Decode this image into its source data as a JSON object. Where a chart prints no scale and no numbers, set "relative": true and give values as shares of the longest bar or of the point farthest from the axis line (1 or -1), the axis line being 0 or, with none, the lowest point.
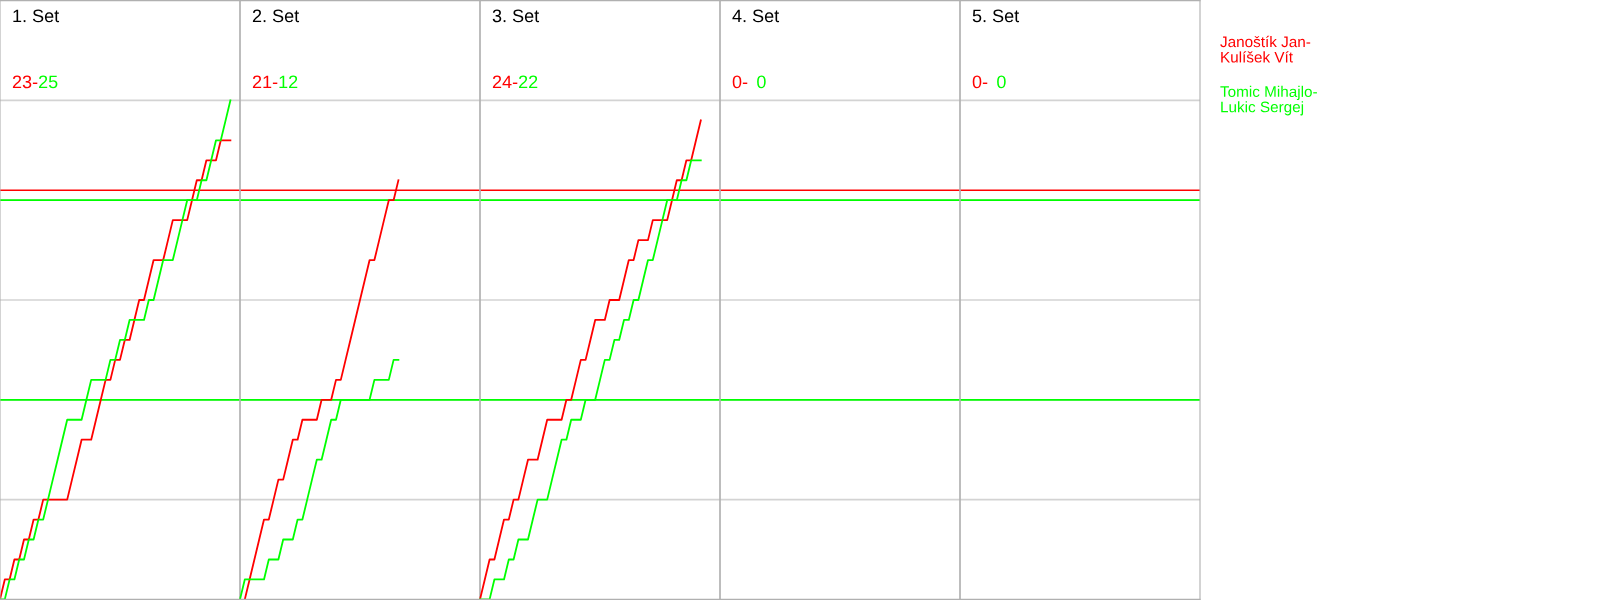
{
  "chart_data": {
    "type": "line",
    "relative": true,
    "annotations": [
      "1. Set",
      "23-",
      "25",
      "2. Set",
      "21-",
      "12",
      "3. Set",
      "24-",
      "22",
      "4. Set",
      "0-",
      "0",
      "5. Set",
      "0-",
      "0"
    ],
    "categories": [
      null,
      null,
      null,
      null,
      null,
      null,
      null,
      null,
      null,
      null,
      null,
      null,
      null,
      null,
      null,
      null,
      null,
      null,
      null,
      null,
      null,
      null,
      null,
      null,
      null,
      null,
      null,
      null,
      null,
      null,
      null,
      null,
      null,
      null,
      null,
      null,
      null,
      null,
      null,
      null,
      null,
      null,
      null,
      null,
      null,
      null,
      null,
      null,
      null,
      null,
      null,
      null,
      null,
      null,
      null,
      null,
      null,
      null,
      null,
      null,
      null,
      null,
      null,
      null,
      null,
      null,
      null,
      null,
      null,
      null,
      null,
      null,
      null,
      null,
      null,
      null,
      null,
      null,
      null,
      null,
      null,
      null,
      null,
      null,
      null,
      null,
      null,
      null,
      null,
      null,
      null,
      null,
      null,
      null,
      null,
      null,
      null,
      null,
      null,
      null,
      null,
      null,
      null,
      null,
      null,
      null,
      null,
      null,
      null,
      null,
      null,
      null,
      null,
      null,
      null,
      null,
      null,
      null,
      null,
      null,
      null,
      null,
      null,
      null,
      null,
      null,
      null,
      null,
      null,
      null,
      null,
      null,
      null,
      null,
      null,
      null,
      null,
      null,
      null,
      null,
      null,
      null,
      null,
      null,
      null,
      null,
      null,
      null,
      null,
      null,
      null,
      null,
      null,
      null,
      null,
      null,
      null,
      null,
      null,
      null,
      null,
      null,
      null,
      null,
      null,
      null,
      null,
      null,
      null,
      null,
      null,
      null,
      null,
      null,
      null,
      null,
      null,
      null,
      null,
      null,
      null,
      null,
      null,
      null,
      null,
      null,
      null,
      null,
      null,
      null,
      null,
      null,
      null,
      null,
      null,
      null,
      null,
      null,
      null,
      null,
      null,
      null,
      null,
      null,
      null,
      null,
      null,
      null,
      null,
      null,
      null,
      null,
      null,
      null,
      null,
      null,
      null,
      null,
      null,
      null,
      null,
      null,
      null,
      null,
      null,
      null,
      null,
      null,
      null,
      null,
      null,
      null,
      null,
      null,
      null,
      null,
      null,
      null,
      null,
      null,
      null,
      null,
      null,
      null,
      null,
      null,
      null,
      null,
      null,
      null
    ],
    "ref_lines": [
      {
        "axis": "y",
        "value": 0.2,
        "color": "#d3d3d3"
      },
      {
        "axis": "y",
        "value": 0.4,
        "color": "#d3d3d3"
      },
      {
        "axis": "y",
        "value": 0.6,
        "color": "#d3d3d3"
      },
      {
        "axis": "y",
        "value": 0.8,
        "color": "#d3d3d3"
      },
      {
        "axis": "y",
        "value": 1,
        "color": "#d3d3d3"
      },
      {
        "axis": "y",
        "value": 0.82,
        "color": "#ff0000"
      },
      {
        "axis": "y",
        "value": 0.8,
        "color": "#00ff00"
      },
      {
        "axis": "y",
        "value": 0.4,
        "color": "#00ff00"
      }
    ],
    "series": [
      {
        "name": "Janoštík Jan-\nKulíšek Vít",
        "color": "#ff0000",
        "values": [
          0,
          0.04,
          0.04,
          0.08,
          0.08,
          0.12,
          0.12,
          0.16,
          0.16,
          0.2,
          0.2,
          0.2,
          0.2,
          0.2,
          0.2,
          0.24,
          0.28,
          0.32,
          0.32,
          0.32,
          0.36,
          0.4,
          0.44,
          0.44,
          0.48,
          0.48,
          0.52,
          0.52,
          0.56,
          0.6,
          0.6,
          0.64,
          0.68,
          0.68,
          0.68,
          0.72,
          0.76,
          0.76,
          0.76,
          0.76,
          0.8,
          0.84,
          0.84,
          0.88,
          0.88,
          0.88,
          0.92,
          0.92,
          0.92,
          null,
          null,
          null,
          null,
          null,
          null,
          null,
          null,
          null,
          null,
          null,
          null,
          null,
          null,
          null,
          null,
          null,
          null,
          null,
          null,
          null,
          null,
          null,
          null,
          null,
          null,
          null,
          null,
          null,
          null,
          null,
          null,
          null,
          null,
          null,
          null,
          null,
          null,
          null,
          null,
          null,
          null,
          null,
          null,
          null,
          null,
          null,
          null,
          null,
          null,
          null,
          null,
          null,
          null,
          null,
          null,
          null,
          null,
          null,
          null,
          null,
          null,
          null,
          null,
          null,
          null,
          null,
          null,
          null,
          null,
          null,
          null,
          null,
          null,
          null,
          null,
          null,
          null,
          null,
          null,
          null,
          null,
          null,
          null,
          null,
          null,
          null,
          null,
          null,
          null,
          null,
          null,
          null,
          null,
          null,
          null,
          null,
          null,
          null,
          null,
          null,
          null,
          null,
          null,
          null,
          null,
          null,
          null,
          null,
          null,
          null,
          null,
          null,
          null,
          null,
          null,
          null,
          null,
          null,
          null,
          null,
          null,
          null,
          null,
          null,
          null,
          null,
          null,
          null,
          null,
          null,
          null,
          null,
          null,
          null,
          null,
          null,
          null,
          null,
          null,
          null,
          null,
          null,
          null,
          null,
          null,
          null,
          null,
          null,
          null,
          null,
          null,
          null,
          null,
          null,
          null,
          null,
          null,
          null,
          null,
          null,
          null,
          null,
          null,
          null,
          null,
          null,
          null,
          null,
          null,
          null,
          null,
          null,
          null,
          null,
          null,
          null,
          null,
          null,
          null,
          null,
          null,
          null,
          null,
          null,
          null,
          null,
          null,
          null,
          null,
          null,
          null,
          null,
          null,
          null,
          null,
          null,
          null,
          null,
          null,
          null
        ]
      },
      {
        "name": "Tomic Mihajlo-\nLukic Sergej",
        "color": "#00ff00",
        "values": [
          0,
          0,
          0.04,
          0.04,
          0.08,
          0.08,
          0.12,
          0.12,
          0.16,
          0.16,
          0.2,
          0.24,
          0.28,
          0.32,
          0.36,
          0.36,
          0.36,
          0.36,
          0.4,
          0.44,
          0.44,
          0.44,
          0.44,
          0.48,
          0.48,
          0.52,
          0.52,
          0.56,
          0.56,
          0.56,
          0.56,
          0.6,
          0.6,
          0.64,
          0.68,
          0.68,
          0.68,
          0.72,
          0.76,
          0.8,
          0.8,
          0.8,
          0.84,
          0.84,
          0.88,
          0.92,
          0.92,
          0.96,
          1,
          null,
          null,
          null,
          null,
          null,
          null,
          null,
          null,
          null,
          null,
          null,
          null,
          null,
          null,
          null,
          null,
          null,
          null,
          null,
          null,
          null,
          null,
          null,
          null,
          null,
          null,
          null,
          null,
          null,
          null,
          null,
          null,
          null,
          null,
          null,
          null,
          null,
          null,
          null,
          null,
          null,
          null,
          null,
          null,
          null,
          null,
          null,
          null,
          null,
          null,
          null,
          null,
          null,
          null,
          null,
          null,
          null,
          null,
          null,
          null,
          null,
          null,
          null,
          null,
          null,
          null,
          null,
          null,
          null,
          null,
          null,
          null,
          null,
          null,
          null,
          null,
          null,
          null,
          null,
          null,
          null,
          null,
          null,
          null,
          null,
          null,
          null,
          null,
          null,
          null,
          null,
          null,
          null,
          null,
          null,
          null,
          null,
          null,
          null,
          null,
          null,
          null,
          null,
          null,
          null,
          null,
          null,
          null,
          null,
          null,
          null,
          null,
          null,
          null,
          null,
          null,
          null,
          null,
          null,
          null,
          null,
          null,
          null,
          null,
          null,
          null,
          null,
          null,
          null,
          null,
          null,
          null,
          null,
          null,
          null,
          null,
          null,
          null,
          null,
          null,
          null,
          null,
          null,
          null,
          null,
          null,
          null,
          null,
          null,
          null,
          null,
          null,
          null,
          null,
          null,
          null,
          null,
          null,
          null,
          null,
          null,
          null,
          null,
          null,
          null,
          null,
          null,
          null,
          null,
          null,
          null,
          null,
          null,
          null,
          null,
          null,
          null,
          null,
          null,
          null,
          null,
          null,
          null,
          null,
          null,
          null,
          null,
          null,
          null,
          null,
          null,
          null,
          null,
          null,
          null,
          null,
          null,
          null,
          null,
          null,
          null
        ]
      },
      {
        "color": "#ff0000",
        "values": [
          null,
          null,
          null,
          null,
          null,
          null,
          null,
          null,
          null,
          null,
          null,
          null,
          null,
          null,
          null,
          null,
          null,
          null,
          null,
          null,
          null,
          null,
          null,
          null,
          null,
          null,
          null,
          null,
          null,
          null,
          null,
          null,
          null,
          null,
          null,
          null,
          null,
          null,
          null,
          null,
          null,
          null,
          null,
          null,
          null,
          null,
          null,
          null,
          null,
          null,
          null,
          0,
          0.04,
          0.08,
          0.12,
          0.16,
          0.16,
          0.2,
          0.24,
          0.24,
          0.28,
          0.32,
          0.32,
          0.36,
          0.36,
          0.36,
          0.36,
          0.4,
          0.4,
          0.4,
          0.44,
          0.44,
          0.48,
          0.52,
          0.56,
          0.6,
          0.64,
          0.68,
          0.68,
          0.72,
          0.76,
          0.8,
          0.8,
          0.84,
          null,
          null,
          null,
          null,
          null,
          null,
          null,
          null,
          null,
          null,
          null,
          null,
          null,
          null,
          null,
          null,
          null,
          null,
          null,
          null,
          null,
          null,
          null,
          null,
          null,
          null,
          null,
          null,
          null,
          null,
          null,
          null,
          null,
          null,
          null,
          null,
          null,
          null,
          null,
          null,
          null,
          null,
          null,
          null,
          null,
          null,
          null,
          null,
          null,
          null,
          null,
          null,
          null,
          null,
          null,
          null,
          null,
          null,
          null,
          null,
          null,
          null,
          null,
          null,
          null,
          null,
          null,
          null,
          null,
          null,
          null,
          null,
          null,
          null,
          null,
          null,
          null,
          null,
          null,
          null,
          null,
          null,
          null,
          null,
          null,
          null,
          null,
          null,
          null,
          null,
          null,
          null,
          null,
          null,
          null,
          null,
          null,
          null,
          null,
          null,
          null,
          null,
          null,
          null,
          null,
          null,
          null,
          null,
          null,
          null,
          null,
          null,
          null,
          null,
          null,
          null,
          null,
          null,
          null,
          null,
          null,
          null,
          null,
          null,
          null,
          null,
          null,
          null,
          null,
          null,
          null,
          null,
          null,
          null,
          null,
          null,
          null,
          null,
          null,
          null,
          null,
          null,
          null,
          null,
          null,
          null,
          null,
          null,
          null,
          null,
          null,
          null,
          null,
          null,
          null,
          null,
          null,
          null,
          null,
          null,
          null,
          null,
          null,
          null,
          null,
          null
        ]
      },
      {
        "color": "#00ff00",
        "values": [
          null,
          null,
          null,
          null,
          null,
          null,
          null,
          null,
          null,
          null,
          null,
          null,
          null,
          null,
          null,
          null,
          null,
          null,
          null,
          null,
          null,
          null,
          null,
          null,
          null,
          null,
          null,
          null,
          null,
          null,
          null,
          null,
          null,
          null,
          null,
          null,
          null,
          null,
          null,
          null,
          null,
          null,
          null,
          null,
          null,
          null,
          null,
          null,
          null,
          null,
          0,
          0.04,
          0.04,
          0.04,
          0.04,
          0.04,
          0.08,
          0.08,
          0.08,
          0.12,
          0.12,
          0.12,
          0.16,
          0.16,
          0.2,
          0.24,
          0.28,
          0.28,
          0.32,
          0.36,
          0.36,
          0.4,
          0.4,
          0.4,
          0.4,
          0.4,
          0.4,
          0.4,
          0.44,
          0.44,
          0.44,
          0.44,
          0.48,
          0.48,
          null,
          null,
          null,
          null,
          null,
          null,
          null,
          null,
          null,
          null,
          null,
          null,
          null,
          null,
          null,
          null,
          null,
          null,
          null,
          null,
          null,
          null,
          null,
          null,
          null,
          null,
          null,
          null,
          null,
          null,
          null,
          null,
          null,
          null,
          null,
          null,
          null,
          null,
          null,
          null,
          null,
          null,
          null,
          null,
          null,
          null,
          null,
          null,
          null,
          null,
          null,
          null,
          null,
          null,
          null,
          null,
          null,
          null,
          null,
          null,
          null,
          null,
          null,
          null,
          null,
          null,
          null,
          null,
          null,
          null,
          null,
          null,
          null,
          null,
          null,
          null,
          null,
          null,
          null,
          null,
          null,
          null,
          null,
          null,
          null,
          null,
          null,
          null,
          null,
          null,
          null,
          null,
          null,
          null,
          null,
          null,
          null,
          null,
          null,
          null,
          null,
          null,
          null,
          null,
          null,
          null,
          null,
          null,
          null,
          null,
          null,
          null,
          null,
          null,
          null,
          null,
          null,
          null,
          null,
          null,
          null,
          null,
          null,
          null,
          null,
          null,
          null,
          null,
          null,
          null,
          null,
          null,
          null,
          null,
          null,
          null,
          null,
          null,
          null,
          null,
          null,
          null,
          null,
          null,
          null,
          null,
          null,
          null,
          null,
          null,
          null,
          null,
          null,
          null,
          null,
          null,
          null,
          null,
          null,
          null,
          null,
          null,
          null,
          null,
          null,
          null
        ]
      },
      {
        "color": "#ff0000",
        "values": [
          null,
          null,
          null,
          null,
          null,
          null,
          null,
          null,
          null,
          null,
          null,
          null,
          null,
          null,
          null,
          null,
          null,
          null,
          null,
          null,
          null,
          null,
          null,
          null,
          null,
          null,
          null,
          null,
          null,
          null,
          null,
          null,
          null,
          null,
          null,
          null,
          null,
          null,
          null,
          null,
          null,
          null,
          null,
          null,
          null,
          null,
          null,
          null,
          null,
          null,
          null,
          null,
          null,
          null,
          null,
          null,
          null,
          null,
          null,
          null,
          null,
          null,
          null,
          null,
          null,
          null,
          null,
          null,
          null,
          null,
          null,
          null,
          null,
          null,
          null,
          null,
          null,
          null,
          null,
          null,
          null,
          null,
          null,
          null,
          null,
          null,
          null,
          null,
          null,
          null,
          null,
          null,
          null,
          null,
          null,
          null,
          null,
          null,
          null,
          null,
          0,
          0.04,
          0.08,
          0.08,
          0.12,
          0.16,
          0.16,
          0.2,
          0.2,
          0.24,
          0.28,
          0.28,
          0.28,
          0.32,
          0.36,
          0.36,
          0.36,
          0.36,
          0.4,
          0.4,
          0.44,
          0.48,
          0.48,
          0.52,
          0.56,
          0.56,
          0.56,
          0.6,
          0.6,
          0.6,
          0.64,
          0.68,
          0.68,
          0.72,
          0.72,
          0.72,
          0.76,
          0.76,
          0.76,
          0.76,
          0.8,
          0.84,
          0.84,
          0.88,
          0.88,
          0.92,
          0.96,
          null,
          null,
          null,
          null,
          null,
          null,
          null,
          null,
          null,
          null,
          null,
          null,
          null,
          null,
          null,
          null,
          null,
          null,
          null,
          null,
          null,
          null,
          null,
          null,
          null,
          null,
          null,
          null,
          null,
          null,
          null,
          null,
          null,
          null,
          null,
          null,
          null,
          null,
          null,
          null,
          null,
          null,
          null,
          null,
          null,
          null,
          null,
          null,
          null,
          null,
          null,
          null,
          null,
          null,
          null,
          null,
          null,
          null,
          null,
          null,
          null,
          null,
          null,
          null,
          null,
          null,
          null,
          null,
          null,
          null,
          null,
          null,
          null,
          null,
          null,
          null,
          null,
          null,
          null,
          null,
          null,
          null,
          null,
          null,
          null,
          null,
          null,
          null,
          null,
          null,
          null,
          null,
          null,
          null,
          null,
          null,
          null,
          null,
          null,
          null,
          null,
          null,
          null
        ]
      },
      {
        "color": "#00ff00",
        "values": [
          null,
          null,
          null,
          null,
          null,
          null,
          null,
          null,
          null,
          null,
          null,
          null,
          null,
          null,
          null,
          null,
          null,
          null,
          null,
          null,
          null,
          null,
          null,
          null,
          null,
          null,
          null,
          null,
          null,
          null,
          null,
          null,
          null,
          null,
          null,
          null,
          null,
          null,
          null,
          null,
          null,
          null,
          null,
          null,
          null,
          null,
          null,
          null,
          null,
          null,
          null,
          null,
          null,
          null,
          null,
          null,
          null,
          null,
          null,
          null,
          null,
          null,
          null,
          null,
          null,
          null,
          null,
          null,
          null,
          null,
          null,
          null,
          null,
          null,
          null,
          null,
          null,
          null,
          null,
          null,
          null,
          null,
          null,
          null,
          null,
          null,
          null,
          null,
          null,
          null,
          null,
          null,
          null,
          null,
          null,
          null,
          null,
          null,
          null,
          null,
          0,
          0,
          0,
          0.04,
          0.04,
          0.04,
          0.08,
          0.08,
          0.12,
          0.12,
          0.12,
          0.16,
          0.2,
          0.2,
          0.2,
          0.24,
          0.28,
          0.32,
          0.32,
          0.36,
          0.36,
          0.36,
          0.4,
          0.4,
          0.4,
          0.44,
          0.48,
          0.48,
          0.52,
          0.52,
          0.56,
          0.56,
          0.6,
          0.6,
          0.64,
          0.68,
          0.68,
          0.72,
          0.76,
          0.8,
          0.8,
          0.8,
          0.84,
          0.84,
          0.88,
          0.88,
          0.88,
          null,
          null,
          null,
          null,
          null,
          null,
          null,
          null,
          null,
          null,
          null,
          null,
          null,
          null,
          null,
          null,
          null,
          null,
          null,
          null,
          null,
          null,
          null,
          null,
          null,
          null,
          null,
          null,
          null,
          null,
          null,
          null,
          null,
          null,
          null,
          null,
          null,
          null,
          null,
          null,
          null,
          null,
          null,
          null,
          null,
          null,
          null,
          null,
          null,
          null,
          null,
          null,
          null,
          null,
          null,
          null,
          null,
          null,
          null,
          null,
          null,
          null,
          null,
          null,
          null,
          null,
          null,
          null,
          null,
          null,
          null,
          null,
          null,
          null,
          null,
          null,
          null,
          null,
          null,
          null,
          null,
          null,
          null,
          null,
          null,
          null,
          null,
          null,
          null,
          null,
          null,
          null,
          null,
          null,
          null,
          null,
          null,
          null,
          null,
          null,
          null,
          null,
          null
        ]
      }
    ]
  }
}
